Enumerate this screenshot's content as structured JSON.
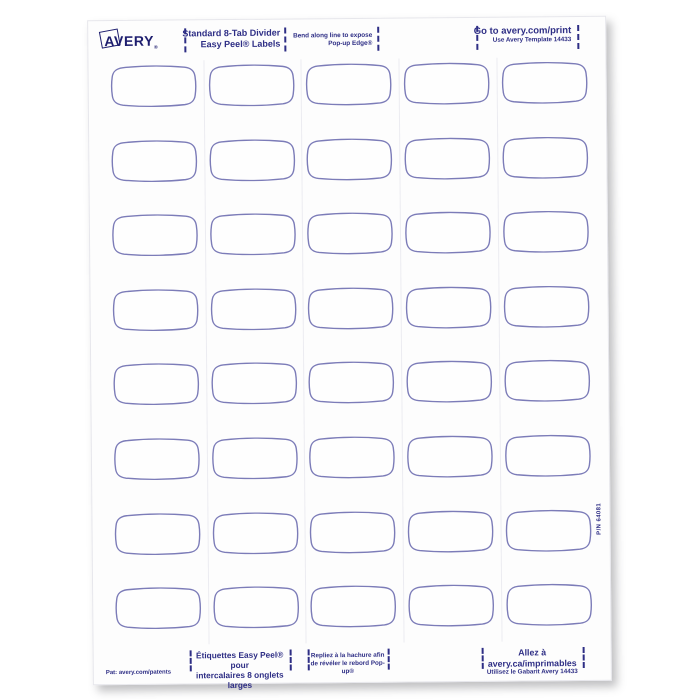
{
  "brand": {
    "logo_text": "AVERY",
    "registered": "®"
  },
  "header": {
    "title_line1": "Standard 8-Tab Divider",
    "title_line2": "Easy Peel® Labels",
    "bend_line1": "Bend along line to expose",
    "bend_line2": "Pop-up Edge®",
    "web_line1": "Go to avery.com/print",
    "web_line2": "Use Avery Template 14433"
  },
  "footer": {
    "title_fr_line1": "Étiquettes Easy Peel® pour",
    "title_fr_line2": "intercalaires 8 onglets larges",
    "bend_fr_line1": "Repliez à la hachure afin",
    "bend_fr_line2": "de révéler le rebord Pop-up®",
    "web_fr_line1": "Allez à avery.ca/imprimables",
    "web_fr_line2": "Utilisez le Gabarit Avery 14433",
    "patent": "Pat: avery.com/patents"
  },
  "side": {
    "part_number": "P/N 64081"
  },
  "label_grid": {
    "rows": 8,
    "columns": 5
  },
  "colors": {
    "ink": "#2e2e85",
    "logo_ink": "#1d1d6e",
    "label_outline": "#7c7cb8",
    "sheet_background": "#fdfdfd"
  }
}
